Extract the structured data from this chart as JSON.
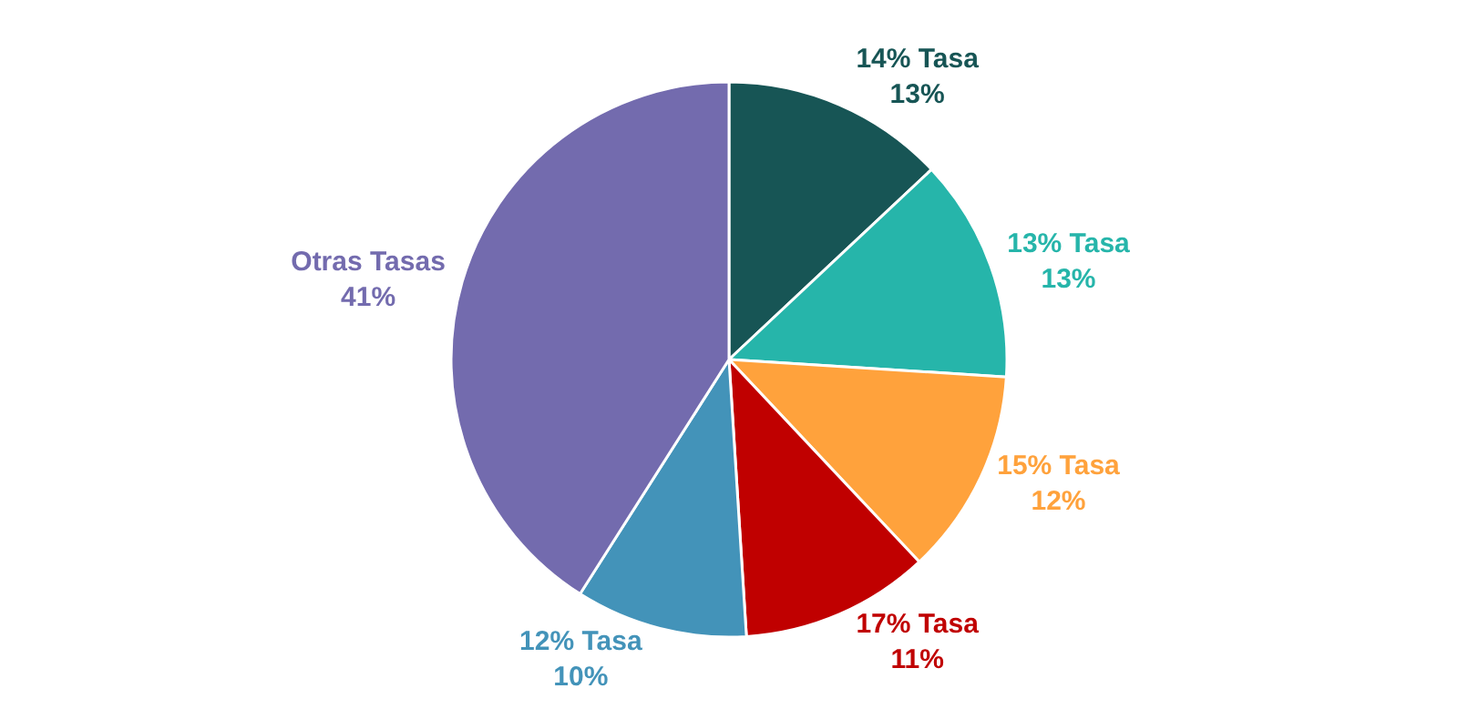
{
  "chart_data": {
    "type": "pie",
    "categories": [
      "14% Tasa",
      "13% Tasa",
      "15% Tasa",
      "17% Tasa",
      "12% Tasa",
      "Otras Tasas"
    ],
    "values": [
      13,
      13,
      12,
      11,
      10,
      41
    ],
    "colors": [
      "#175555",
      "#26b5aa",
      "#ffa23c",
      "#c00000",
      "#4393b9",
      "#736bae"
    ],
    "value_labels": [
      "13%",
      "13%",
      "12%",
      "11%",
      "10%",
      "41%"
    ],
    "legend": false
  }
}
